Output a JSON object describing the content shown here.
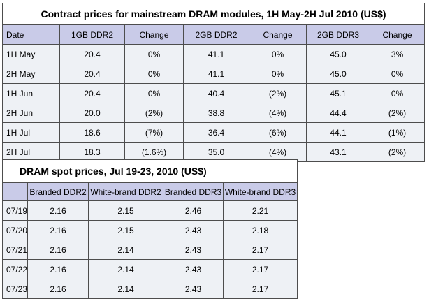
{
  "contract": {
    "title": "Contract prices for mainstream DRAM modules, 1H May-2H Jul 2010 (US$)",
    "headers": [
      "Date",
      "1GB DDR2",
      "Change",
      "2GB DDR2",
      "Change",
      "2GB DDR3",
      "Change"
    ],
    "rows": [
      [
        "1H May",
        "20.4",
        "0%",
        "41.1",
        "0%",
        "45.0",
        "3%"
      ],
      [
        "2H May",
        "20.4",
        "0%",
        "41.1",
        "0%",
        "45.0",
        "0%"
      ],
      [
        "1H Jun",
        "20.4",
        "0%",
        "40.4",
        "(2%)",
        "45.1",
        "0%"
      ],
      [
        "2H Jun",
        "20.0",
        "(2%)",
        "38.8",
        "(4%)",
        "44.4",
        "(2%)"
      ],
      [
        "1H Jul",
        "18.6",
        "(7%)",
        "36.4",
        "(6%)",
        "44.1",
        "(1%)"
      ],
      [
        "2H Jul",
        "18.3",
        "(1.6%)",
        "35.0",
        "(4%)",
        "43.1",
        "(2%)"
      ]
    ]
  },
  "spot": {
    "title": "DRAM spot prices, Jul 19-23, 2010 (US$)",
    "headers": [
      "",
      "Branded DDR2",
      "White-brand DDR2",
      "Branded DDR3",
      "White-brand DDR3"
    ],
    "rows": [
      [
        "07/19",
        "2.16",
        "2.15",
        "2.46",
        "2.21"
      ],
      [
        "07/20",
        "2.16",
        "2.15",
        "2.43",
        "2.18"
      ],
      [
        "07/21",
        "2.16",
        "2.14",
        "2.43",
        "2.17"
      ],
      [
        "07/22",
        "2.16",
        "2.14",
        "2.43",
        "2.17"
      ],
      [
        "07/23",
        "2.16",
        "2.14",
        "2.43",
        "2.17"
      ]
    ]
  }
}
